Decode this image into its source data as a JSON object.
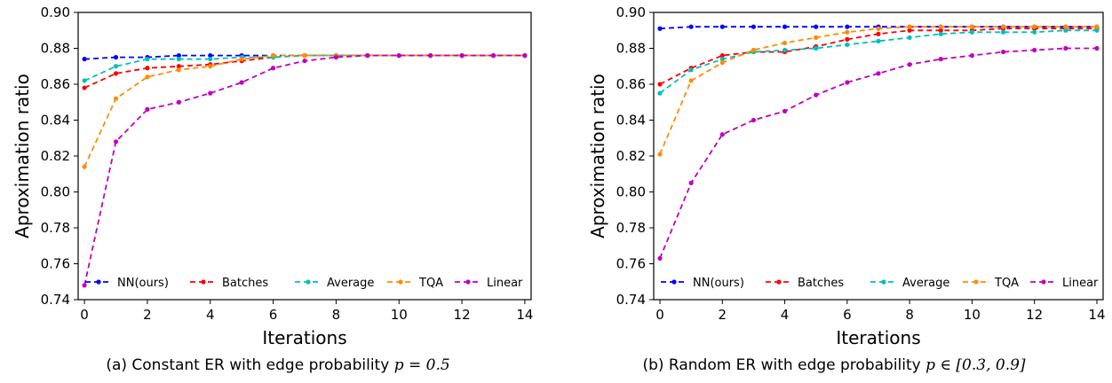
{
  "chart_data": [
    {
      "type": "line",
      "title": "",
      "caption_prefix": "(a) Constant ER with edge probability ",
      "caption_math": "p = 0.5",
      "xlabel": "Iterations",
      "ylabel": "Aproximation ratio",
      "xlim": [
        -0.2,
        14.2
      ],
      "ylim": [
        0.74,
        0.9
      ],
      "xticks": [
        0,
        2,
        4,
        6,
        8,
        10,
        12,
        14
      ],
      "yticks": [
        0.74,
        0.76,
        0.78,
        0.8,
        0.82,
        0.84,
        0.86,
        0.88,
        0.9
      ],
      "grid": false,
      "legend": "bottom",
      "x": [
        0,
        1,
        2,
        3,
        4,
        5,
        6,
        7,
        8,
        9,
        10,
        11,
        12,
        13,
        14
      ],
      "series": [
        {
          "name": "NN(ours)",
          "color": "#0000ff",
          "values": [
            0.874,
            0.875,
            0.875,
            0.876,
            0.876,
            0.876,
            0.876,
            0.876,
            0.876,
            0.876,
            0.876,
            0.876,
            0.876,
            0.876,
            0.876
          ]
        },
        {
          "name": "Batches",
          "color": "#ff0000",
          "values": [
            0.858,
            0.866,
            0.869,
            0.87,
            0.871,
            0.873,
            0.875,
            0.876,
            0.876,
            0.876,
            0.876,
            0.876,
            0.876,
            0.876,
            0.876
          ]
        },
        {
          "name": "Average",
          "color": "#00bfbf",
          "values": [
            0.862,
            0.87,
            0.874,
            0.874,
            0.874,
            0.875,
            0.875,
            0.876,
            0.876,
            0.876,
            0.876,
            0.876,
            0.876,
            0.876,
            0.876
          ]
        },
        {
          "name": "TQA",
          "color": "#ff8c00",
          "values": [
            0.814,
            0.852,
            0.864,
            0.868,
            0.87,
            0.874,
            0.876,
            0.876,
            0.876,
            0.876,
            0.876,
            0.876,
            0.876,
            0.876,
            0.876
          ]
        },
        {
          "name": "Linear",
          "color": "#bf00bf",
          "values": [
            0.748,
            0.828,
            0.846,
            0.85,
            0.855,
            0.861,
            0.869,
            0.873,
            0.875,
            0.876,
            0.876,
            0.876,
            0.876,
            0.876,
            0.876
          ]
        }
      ]
    },
    {
      "type": "line",
      "title": "",
      "caption_prefix": "(b) Random ER with edge probability ",
      "caption_math": "p ∈ [0.3, 0.9]",
      "xlabel": "Iterations",
      "ylabel": "Aproximation ratio",
      "xlim": [
        -0.2,
        14.2
      ],
      "ylim": [
        0.74,
        0.9
      ],
      "xticks": [
        0,
        2,
        4,
        6,
        8,
        10,
        12,
        14
      ],
      "yticks": [
        0.74,
        0.76,
        0.78,
        0.8,
        0.82,
        0.84,
        0.86,
        0.88,
        0.9
      ],
      "grid": false,
      "legend": "bottom",
      "x": [
        0,
        1,
        2,
        3,
        4,
        5,
        6,
        7,
        8,
        9,
        10,
        11,
        12,
        13,
        14
      ],
      "series": [
        {
          "name": "NN(ours)",
          "color": "#0000ff",
          "values": [
            0.891,
            0.892,
            0.892,
            0.892,
            0.892,
            0.892,
            0.892,
            0.892,
            0.892,
            0.892,
            0.892,
            0.892,
            0.892,
            0.892,
            0.892
          ]
        },
        {
          "name": "Batches",
          "color": "#ff0000",
          "values": [
            0.86,
            0.869,
            0.876,
            0.878,
            0.878,
            0.881,
            0.885,
            0.888,
            0.89,
            0.89,
            0.89,
            0.891,
            0.891,
            0.891,
            0.891
          ]
        },
        {
          "name": "Average",
          "color": "#00bfbf",
          "values": [
            0.855,
            0.868,
            0.874,
            0.878,
            0.879,
            0.88,
            0.882,
            0.884,
            0.886,
            0.888,
            0.889,
            0.889,
            0.889,
            0.89,
            0.89
          ]
        },
        {
          "name": "TQA",
          "color": "#ff8c00",
          "values": [
            0.821,
            0.862,
            0.872,
            0.879,
            0.883,
            0.886,
            0.889,
            0.891,
            0.892,
            0.892,
            0.892,
            0.892,
            0.892,
            0.892,
            0.892
          ]
        },
        {
          "name": "Linear",
          "color": "#bf00bf",
          "values": [
            0.763,
            0.805,
            0.832,
            0.84,
            0.845,
            0.854,
            0.861,
            0.866,
            0.871,
            0.874,
            0.876,
            0.878,
            0.879,
            0.88,
            0.88
          ]
        }
      ]
    }
  ]
}
